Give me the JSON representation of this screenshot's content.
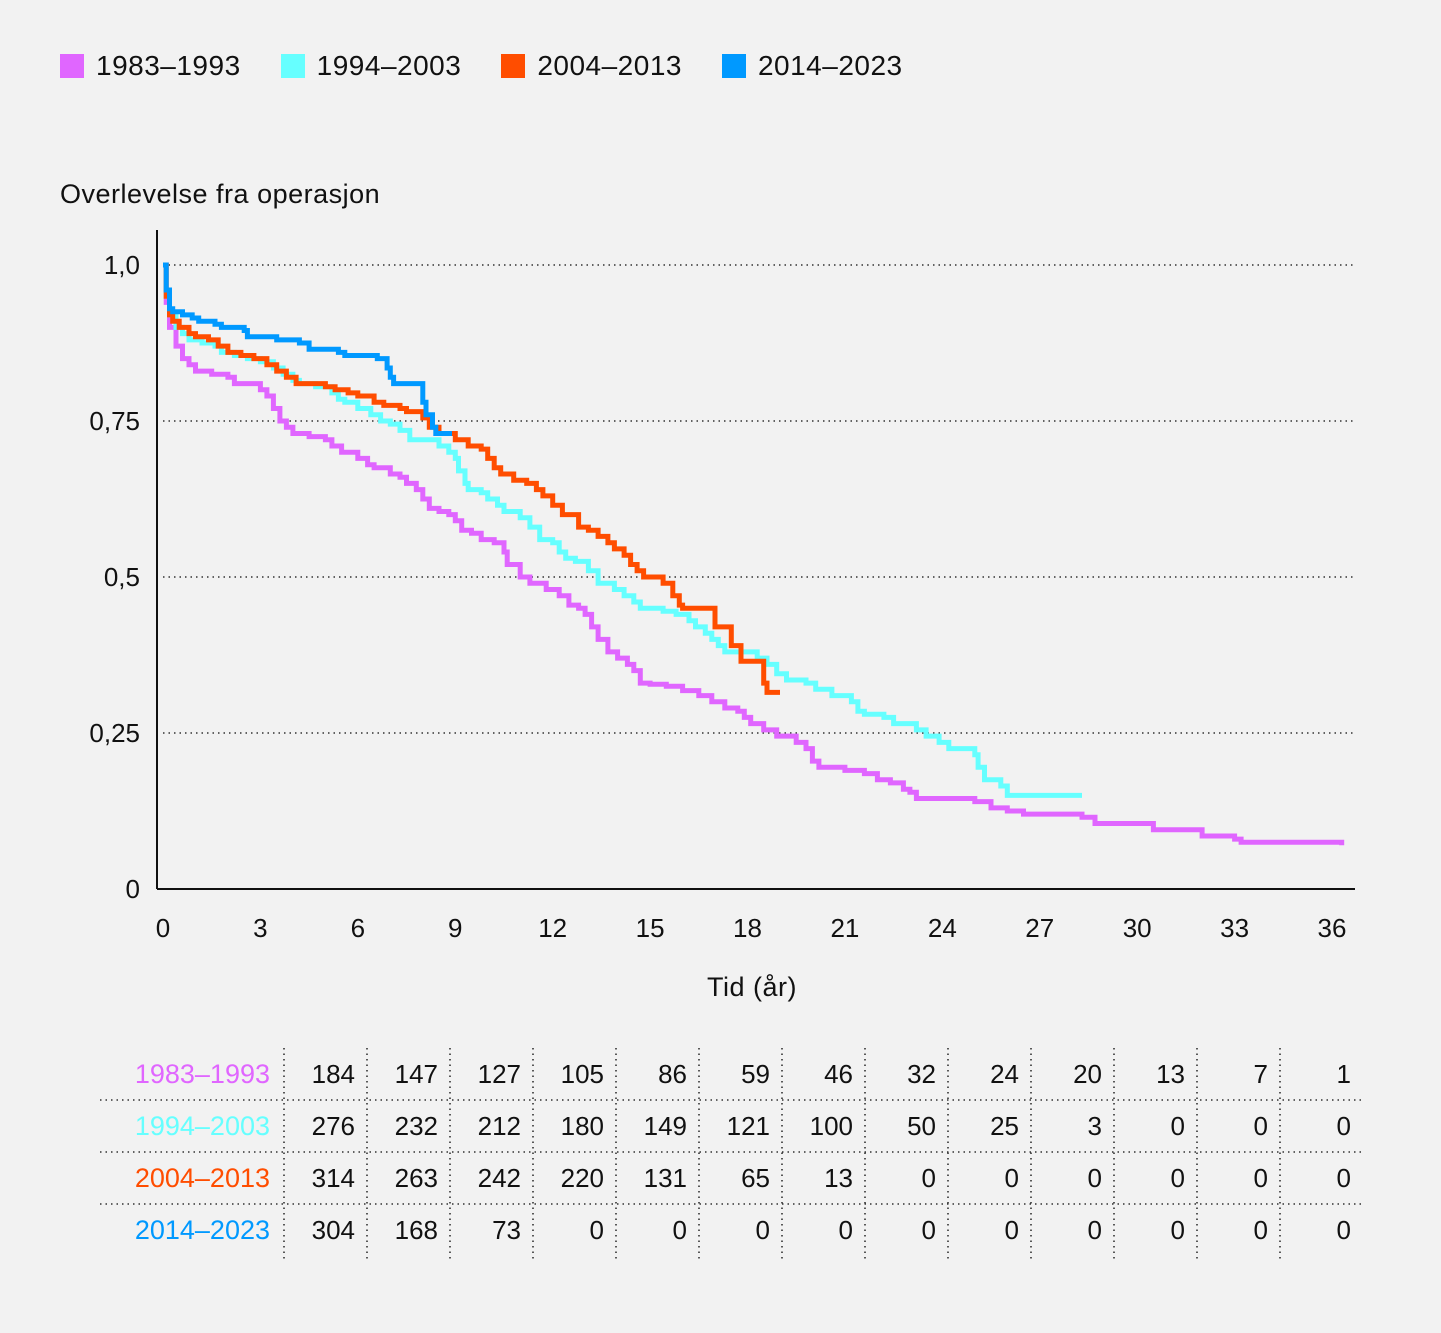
{
  "legend": [
    {
      "label": "1983–1993",
      "color": "#e066ff"
    },
    {
      "label": "1994–2003",
      "color": "#66ffff"
    },
    {
      "label": "2004–2013",
      "color": "#ff4d00"
    },
    {
      "label": "2014–2023",
      "color": "#0099ff"
    }
  ],
  "chart_data": {
    "type": "line",
    "step": true,
    "ylabel": "Overlevelse fra operasjon",
    "xlabel": "Tid (år)",
    "xlim": [
      0,
      36
    ],
    "ylim": [
      0,
      1
    ],
    "x_ticks": [
      0,
      3,
      6,
      9,
      12,
      15,
      18,
      21,
      24,
      27,
      30,
      33,
      36
    ],
    "y_ticks": [
      {
        "value": 0,
        "label": "0"
      },
      {
        "value": 0.25,
        "label": "0,25"
      },
      {
        "value": 0.5,
        "label": "0,5"
      },
      {
        "value": 0.75,
        "label": "0,75"
      },
      {
        "value": 1.0,
        "label": "1,0"
      }
    ],
    "grid": "horizontal-dotted",
    "legend_position": "top-left",
    "series": [
      {
        "name": "1983–1993",
        "color": "#e066ff",
        "points": [
          [
            0,
            1.0
          ],
          [
            0.1,
            0.94
          ],
          [
            0.2,
            0.9
          ],
          [
            0.4,
            0.87
          ],
          [
            0.6,
            0.85
          ],
          [
            0.8,
            0.84
          ],
          [
            1.0,
            0.83
          ],
          [
            1.5,
            0.825
          ],
          [
            2.0,
            0.82
          ],
          [
            2.2,
            0.81
          ],
          [
            3.0,
            0.8
          ],
          [
            3.2,
            0.79
          ],
          [
            3.4,
            0.77
          ],
          [
            3.6,
            0.75
          ],
          [
            3.8,
            0.74
          ],
          [
            4.0,
            0.73
          ],
          [
            4.5,
            0.725
          ],
          [
            5.0,
            0.72
          ],
          [
            5.2,
            0.71
          ],
          [
            5.5,
            0.7
          ],
          [
            6.0,
            0.69
          ],
          [
            6.3,
            0.68
          ],
          [
            6.5,
            0.675
          ],
          [
            7.0,
            0.665
          ],
          [
            7.3,
            0.66
          ],
          [
            7.5,
            0.65
          ],
          [
            7.8,
            0.64
          ],
          [
            8.0,
            0.625
          ],
          [
            8.2,
            0.61
          ],
          [
            8.5,
            0.605
          ],
          [
            8.8,
            0.6
          ],
          [
            9.0,
            0.59
          ],
          [
            9.2,
            0.575
          ],
          [
            9.5,
            0.57
          ],
          [
            9.8,
            0.56
          ],
          [
            10.2,
            0.555
          ],
          [
            10.5,
            0.54
          ],
          [
            10.6,
            0.52
          ],
          [
            11.0,
            0.5
          ],
          [
            11.3,
            0.49
          ],
          [
            11.8,
            0.48
          ],
          [
            12.2,
            0.47
          ],
          [
            12.5,
            0.455
          ],
          [
            12.8,
            0.45
          ],
          [
            13.0,
            0.44
          ],
          [
            13.2,
            0.42
          ],
          [
            13.4,
            0.4
          ],
          [
            13.7,
            0.38
          ],
          [
            14.0,
            0.37
          ],
          [
            14.3,
            0.36
          ],
          [
            14.5,
            0.35
          ],
          [
            14.7,
            0.33
          ],
          [
            15.0,
            0.328
          ],
          [
            15.5,
            0.325
          ],
          [
            16.0,
            0.318
          ],
          [
            16.5,
            0.31
          ],
          [
            16.9,
            0.3
          ],
          [
            17.3,
            0.29
          ],
          [
            17.7,
            0.285
          ],
          [
            17.9,
            0.275
          ],
          [
            18.1,
            0.265
          ],
          [
            18.5,
            0.255
          ],
          [
            18.9,
            0.245
          ],
          [
            19.5,
            0.235
          ],
          [
            19.8,
            0.225
          ],
          [
            20.0,
            0.205
          ],
          [
            20.2,
            0.195
          ],
          [
            21.0,
            0.19
          ],
          [
            21.6,
            0.185
          ],
          [
            22.0,
            0.175
          ],
          [
            22.4,
            0.17
          ],
          [
            22.8,
            0.16
          ],
          [
            23.0,
            0.155
          ],
          [
            23.2,
            0.145
          ],
          [
            25.0,
            0.14
          ],
          [
            25.5,
            0.13
          ],
          [
            26.0,
            0.125
          ],
          [
            26.5,
            0.12
          ],
          [
            28.3,
            0.115
          ],
          [
            28.7,
            0.105
          ],
          [
            30.5,
            0.095
          ],
          [
            32.0,
            0.085
          ],
          [
            33.0,
            0.08
          ],
          [
            33.2,
            0.075
          ],
          [
            36.3,
            0.07
          ]
        ]
      },
      {
        "name": "1994–2003",
        "color": "#66ffff",
        "points": [
          [
            0,
            1.0
          ],
          [
            0.1,
            0.95
          ],
          [
            0.2,
            0.92
          ],
          [
            0.4,
            0.9
          ],
          [
            0.6,
            0.89
          ],
          [
            0.8,
            0.88
          ],
          [
            1.2,
            0.875
          ],
          [
            1.6,
            0.87
          ],
          [
            1.8,
            0.86
          ],
          [
            2.2,
            0.855
          ],
          [
            2.6,
            0.85
          ],
          [
            3.0,
            0.845
          ],
          [
            3.4,
            0.835
          ],
          [
            3.7,
            0.825
          ],
          [
            4.0,
            0.815
          ],
          [
            4.2,
            0.81
          ],
          [
            4.7,
            0.805
          ],
          [
            5.2,
            0.795
          ],
          [
            5.4,
            0.785
          ],
          [
            5.6,
            0.78
          ],
          [
            6.0,
            0.77
          ],
          [
            6.4,
            0.76
          ],
          [
            6.7,
            0.75
          ],
          [
            7.0,
            0.745
          ],
          [
            7.3,
            0.735
          ],
          [
            7.6,
            0.72
          ],
          [
            8.0,
            0.72
          ],
          [
            8.5,
            0.71
          ],
          [
            8.8,
            0.7
          ],
          [
            9.0,
            0.69
          ],
          [
            9.1,
            0.67
          ],
          [
            9.3,
            0.65
          ],
          [
            9.4,
            0.64
          ],
          [
            9.8,
            0.635
          ],
          [
            10.0,
            0.625
          ],
          [
            10.3,
            0.615
          ],
          [
            10.5,
            0.605
          ],
          [
            11.0,
            0.595
          ],
          [
            11.3,
            0.58
          ],
          [
            11.6,
            0.56
          ],
          [
            12.0,
            0.555
          ],
          [
            12.2,
            0.54
          ],
          [
            12.4,
            0.53
          ],
          [
            12.7,
            0.525
          ],
          [
            13.1,
            0.51
          ],
          [
            13.4,
            0.49
          ],
          [
            13.9,
            0.48
          ],
          [
            14.2,
            0.47
          ],
          [
            14.5,
            0.46
          ],
          [
            14.7,
            0.45
          ],
          [
            15.4,
            0.445
          ],
          [
            15.8,
            0.44
          ],
          [
            16.2,
            0.43
          ],
          [
            16.4,
            0.42
          ],
          [
            16.7,
            0.41
          ],
          [
            16.9,
            0.4
          ],
          [
            17.1,
            0.39
          ],
          [
            17.3,
            0.38
          ],
          [
            18.0,
            0.38
          ],
          [
            18.3,
            0.37
          ],
          [
            18.6,
            0.36
          ],
          [
            18.9,
            0.345
          ],
          [
            19.2,
            0.335
          ],
          [
            19.8,
            0.33
          ],
          [
            20.1,
            0.32
          ],
          [
            20.6,
            0.31
          ],
          [
            21.2,
            0.3
          ],
          [
            21.4,
            0.285
          ],
          [
            21.6,
            0.28
          ],
          [
            22.2,
            0.275
          ],
          [
            22.5,
            0.265
          ],
          [
            23.2,
            0.255
          ],
          [
            23.5,
            0.245
          ],
          [
            23.9,
            0.235
          ],
          [
            24.2,
            0.225
          ],
          [
            25.0,
            0.215
          ],
          [
            25.1,
            0.195
          ],
          [
            25.3,
            0.175
          ],
          [
            25.8,
            0.165
          ],
          [
            26.0,
            0.15
          ],
          [
            28.3,
            0.15
          ]
        ]
      },
      {
        "name": "2004–2013",
        "color": "#ff4d00",
        "points": [
          [
            0,
            1.0
          ],
          [
            0.1,
            0.95
          ],
          [
            0.2,
            0.92
          ],
          [
            0.3,
            0.91
          ],
          [
            0.5,
            0.9
          ],
          [
            0.8,
            0.89
          ],
          [
            1.0,
            0.885
          ],
          [
            1.4,
            0.88
          ],
          [
            1.7,
            0.87
          ],
          [
            2.0,
            0.86
          ],
          [
            2.4,
            0.855
          ],
          [
            2.8,
            0.85
          ],
          [
            3.2,
            0.84
          ],
          [
            3.5,
            0.83
          ],
          [
            3.8,
            0.82
          ],
          [
            4.1,
            0.81
          ],
          [
            5.0,
            0.805
          ],
          [
            5.3,
            0.8
          ],
          [
            5.7,
            0.795
          ],
          [
            6.0,
            0.79
          ],
          [
            6.5,
            0.78
          ],
          [
            6.8,
            0.775
          ],
          [
            7.3,
            0.77
          ],
          [
            7.5,
            0.765
          ],
          [
            8.0,
            0.755
          ],
          [
            8.2,
            0.74
          ],
          [
            8.5,
            0.73
          ],
          [
            9.0,
            0.72
          ],
          [
            9.4,
            0.71
          ],
          [
            9.8,
            0.705
          ],
          [
            10.0,
            0.69
          ],
          [
            10.2,
            0.675
          ],
          [
            10.4,
            0.665
          ],
          [
            10.8,
            0.655
          ],
          [
            11.2,
            0.65
          ],
          [
            11.5,
            0.64
          ],
          [
            11.7,
            0.63
          ],
          [
            12.0,
            0.615
          ],
          [
            12.3,
            0.6
          ],
          [
            12.6,
            0.6
          ],
          [
            12.8,
            0.58
          ],
          [
            13.1,
            0.575
          ],
          [
            13.4,
            0.565
          ],
          [
            13.7,
            0.555
          ],
          [
            13.9,
            0.545
          ],
          [
            14.2,
            0.535
          ],
          [
            14.4,
            0.52
          ],
          [
            14.6,
            0.51
          ],
          [
            14.8,
            0.5
          ],
          [
            15.4,
            0.49
          ],
          [
            15.7,
            0.47
          ],
          [
            15.9,
            0.455
          ],
          [
            16.0,
            0.45
          ],
          [
            17.0,
            0.42
          ],
          [
            17.5,
            0.39
          ],
          [
            17.8,
            0.365
          ],
          [
            18.5,
            0.33
          ],
          [
            18.6,
            0.315
          ],
          [
            19.0,
            0.315
          ]
        ]
      },
      {
        "name": "2014–2023",
        "color": "#0099ff",
        "points": [
          [
            0,
            1.0
          ],
          [
            0.1,
            0.96
          ],
          [
            0.2,
            0.93
          ],
          [
            0.3,
            0.925
          ],
          [
            0.6,
            0.92
          ],
          [
            0.9,
            0.915
          ],
          [
            1.1,
            0.91
          ],
          [
            1.6,
            0.905
          ],
          [
            1.8,
            0.9
          ],
          [
            2.5,
            0.895
          ],
          [
            2.6,
            0.885
          ],
          [
            3.5,
            0.88
          ],
          [
            4.2,
            0.875
          ],
          [
            4.5,
            0.865
          ],
          [
            5.4,
            0.86
          ],
          [
            5.6,
            0.855
          ],
          [
            6.6,
            0.85
          ],
          [
            6.9,
            0.835
          ],
          [
            7.0,
            0.82
          ],
          [
            7.1,
            0.81
          ],
          [
            7.8,
            0.81
          ],
          [
            8.0,
            0.78
          ],
          [
            8.1,
            0.76
          ],
          [
            8.3,
            0.74
          ],
          [
            8.4,
            0.73
          ],
          [
            8.9,
            0.73
          ]
        ]
      }
    ]
  },
  "risk_table": {
    "rows": [
      {
        "name": "1983–1993",
        "color": "#e066ff",
        "values": [
          "184",
          "147",
          "127",
          "105",
          "86",
          "59",
          "46",
          "32",
          "24",
          "20",
          "13",
          "7",
          "1"
        ]
      },
      {
        "name": "1994–2003",
        "color": "#66ffff",
        "values": [
          "276",
          "232",
          "212",
          "180",
          "149",
          "121",
          "100",
          "50",
          "25",
          "3",
          "0",
          "0",
          "0"
        ]
      },
      {
        "name": "2004–2013",
        "color": "#ff4d00",
        "values": [
          "314",
          "263",
          "242",
          "220",
          "131",
          "65",
          "13",
          "0",
          "0",
          "0",
          "0",
          "0",
          "0"
        ]
      },
      {
        "name": "2014–2023",
        "color": "#0099ff",
        "values": [
          "304",
          "168",
          "73",
          "0",
          "0",
          "0",
          "0",
          "0",
          "0",
          "0",
          "0",
          "0",
          "0"
        ]
      }
    ]
  }
}
